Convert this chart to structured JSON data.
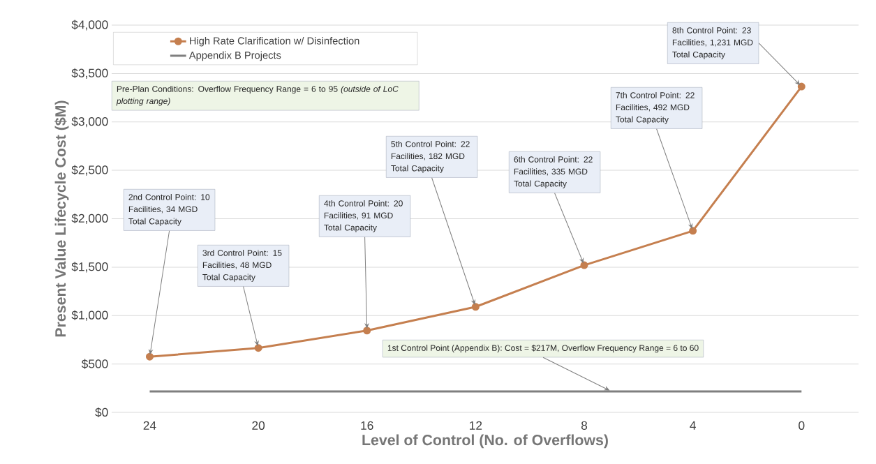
{
  "chart_data": {
    "type": "line",
    "xlabel": "Level of Control (No. of Overflows)",
    "ylabel": "Present Value Lifecycle Cost  ($M)",
    "x": [
      24,
      20,
      16,
      12,
      8,
      4,
      0
    ],
    "xlim": [
      25.4,
      -2.1
    ],
    "xticks": [
      24,
      20,
      16,
      12,
      8,
      4,
      0
    ],
    "ylim": [
      0,
      4000
    ],
    "yticks": [
      {
        "value": 0,
        "label": "$0"
      },
      {
        "value": 500,
        "label": "$500"
      },
      {
        "value": 1000,
        "label": "$1,000"
      },
      {
        "value": 1500,
        "label": "$1,500"
      },
      {
        "value": 2000,
        "label": "$2,000"
      },
      {
        "value": 2500,
        "label": "$2,500"
      },
      {
        "value": 3000,
        "label": "$3,000"
      },
      {
        "value": 3500,
        "label": "$3,500"
      },
      {
        "value": 4000,
        "label": "$4,000"
      }
    ],
    "grid": "y",
    "legend": "top left",
    "series": [
      {
        "name": "High Rate Clarification w/ Disinfection",
        "color": "#c57f4f",
        "marker": "circle",
        "values": [
          575,
          665,
          845,
          1090,
          1520,
          1875,
          3365
        ]
      },
      {
        "name": "Appendix B Projects",
        "color": "#7f7f7f",
        "marker": "none",
        "x": [
          24,
          0
        ],
        "values": [
          217,
          217
        ]
      }
    ],
    "annotations": [
      "Pre-Plan Conditions: Overflow Frequency Range = 6 to 95 *(outside of LoC plotting range)*",
      {
        "text": "2nd Control Point: 10 Facilities, 34 MGD Total Capacity",
        "x": 24,
        "y": 575
      },
      {
        "text": "3rd Control Point: 15 Facilities, 48 MGD Total Capacity",
        "x": 20,
        "y": 665
      },
      {
        "text": "4th Control Point: 20 Facilities, 91 MGD Total Capacity",
        "x": 16,
        "y": 845
      },
      {
        "text": "5th Control Point: 22 Facilities, 182 MGD Total Capacity",
        "x": 12,
        "y": 1090
      },
      {
        "text": "6th Control Point: 22 Facilities, 335 MGD Total Capacity",
        "x": 8,
        "y": 1520
      },
      {
        "text": "7th Control Point: 22 Facilities, 492 MGD Total Capacity",
        "x": 4,
        "y": 1875
      },
      {
        "text": "8th Control Point: 23 Facilities, 1,231 MGD Total Capacity",
        "x": 0,
        "y": 3365
      },
      {
        "text": "1st Control Point (Appendix B): Cost = $217M, Overflow Frequency Range = 6 to 60",
        "x": 7,
        "y": 217
      }
    ]
  }
}
